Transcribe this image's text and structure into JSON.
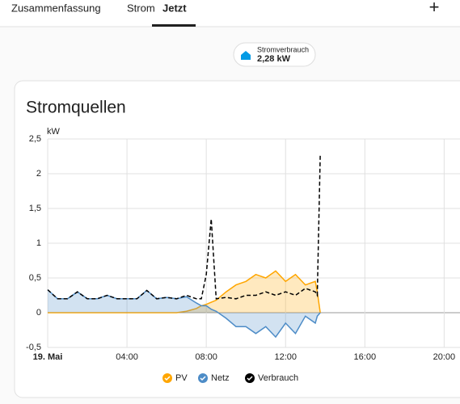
{
  "tabs": [
    "Zusammenfassung",
    "Strom",
    "Jetzt"
  ],
  "active_tab": 2,
  "add_button": "+",
  "badge": {
    "label": "Stromverbrauch",
    "value": "2,28 kW"
  },
  "chart_data": {
    "type": "area",
    "title": "Stromquellen",
    "y_label": "kW",
    "x": [
      0,
      0.5,
      1,
      1.5,
      2,
      2.5,
      3,
      3.5,
      4,
      4.5,
      5,
      5.5,
      6,
      6.5,
      7,
      7.5,
      7.75,
      8,
      8.25,
      8.5,
      9,
      9.5,
      10,
      10.5,
      11,
      11.5,
      12,
      12.5,
      13,
      13.5,
      13.6,
      13.75
    ],
    "xlim": [
      0,
      20.8
    ],
    "xticks": [
      {
        "value": 0,
        "label": "19. Mai"
      },
      {
        "value": 4,
        "label": "04:00"
      },
      {
        "value": 8,
        "label": "08:00"
      },
      {
        "value": 12,
        "label": "12:00"
      },
      {
        "value": 16,
        "label": "16:00"
      },
      {
        "value": 20,
        "label": "20:00"
      }
    ],
    "ylim": [
      -0.5,
      2.5
    ],
    "yticks": [
      {
        "value": 2.5,
        "label": "2,5"
      },
      2,
      {
        "value": 1.5,
        "label": "1,5"
      },
      1,
      {
        "value": 0.5,
        "label": "0,5"
      },
      0,
      {
        "value": -0.5,
        "label": "-0,5"
      }
    ],
    "grid": true,
    "series": [
      {
        "name": "PV",
        "color": "#ffa600",
        "fill": true,
        "values": [
          0,
          0,
          0,
          0,
          0,
          0,
          0,
          0,
          0,
          0,
          0,
          0,
          0,
          0,
          0.02,
          0.06,
          0.1,
          0.12,
          0.15,
          0.18,
          0.3,
          0.4,
          0.45,
          0.55,
          0.5,
          0.6,
          0.45,
          0.55,
          0.4,
          0.45,
          0.3,
          0
        ]
      },
      {
        "name": "Netz",
        "color": "#4d8cc7",
        "fill": true,
        "values": [
          0.33,
          0.2,
          0.2,
          0.3,
          0.2,
          0.2,
          0.25,
          0.2,
          0.2,
          0.2,
          0.32,
          0.2,
          0.22,
          0.2,
          0.23,
          0.14,
          0.1,
          0.1,
          0.05,
          0.02,
          -0.08,
          -0.2,
          -0.2,
          -0.3,
          -0.2,
          -0.35,
          -0.15,
          -0.3,
          -0.05,
          -0.15,
          -0.05,
          0
        ]
      },
      {
        "name": "Verbrauch",
        "color": "#000000",
        "fill": false,
        "dashed": true,
        "values": [
          0.33,
          0.2,
          0.2,
          0.3,
          0.2,
          0.2,
          0.25,
          0.2,
          0.2,
          0.2,
          0.32,
          0.2,
          0.22,
          0.2,
          0.25,
          0.2,
          0.2,
          0.55,
          1.35,
          0.2,
          0.22,
          0.2,
          0.25,
          0.25,
          0.3,
          0.25,
          0.3,
          0.25,
          0.35,
          0.3,
          0.25,
          2.28
        ]
      }
    ]
  }
}
